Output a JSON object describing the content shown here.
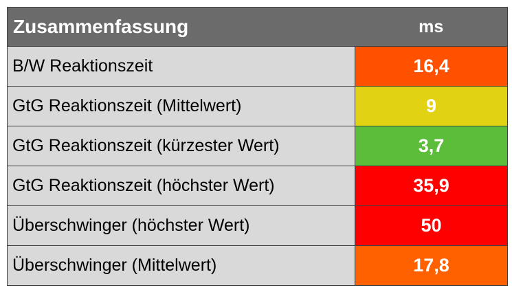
{
  "chart_data": {
    "type": "table",
    "header": {
      "label": "Zusammenfassung",
      "unit": "ms"
    },
    "rows": [
      {
        "label": "B/W Reaktionszeit",
        "value": "16,4",
        "color": "#ff5100"
      },
      {
        "label": "GtG Reaktionszeit (Mittelwert)",
        "value": "9",
        "color": "#e2d214"
      },
      {
        "label": "GtG Reaktionszeit (kürzester Wert)",
        "value": "3,7",
        "color": "#5bbd3a"
      },
      {
        "label": "GtG Reaktionszeit (höchster Wert)",
        "value": "35,9",
        "color": "#ff0000"
      },
      {
        "label": "Überschwinger (höchster Wert)",
        "value": "50",
        "color": "#ff0000"
      },
      {
        "label": "Überschwinger (Mittelwert)",
        "value": "17,8",
        "color": "#ff6100"
      }
    ]
  }
}
